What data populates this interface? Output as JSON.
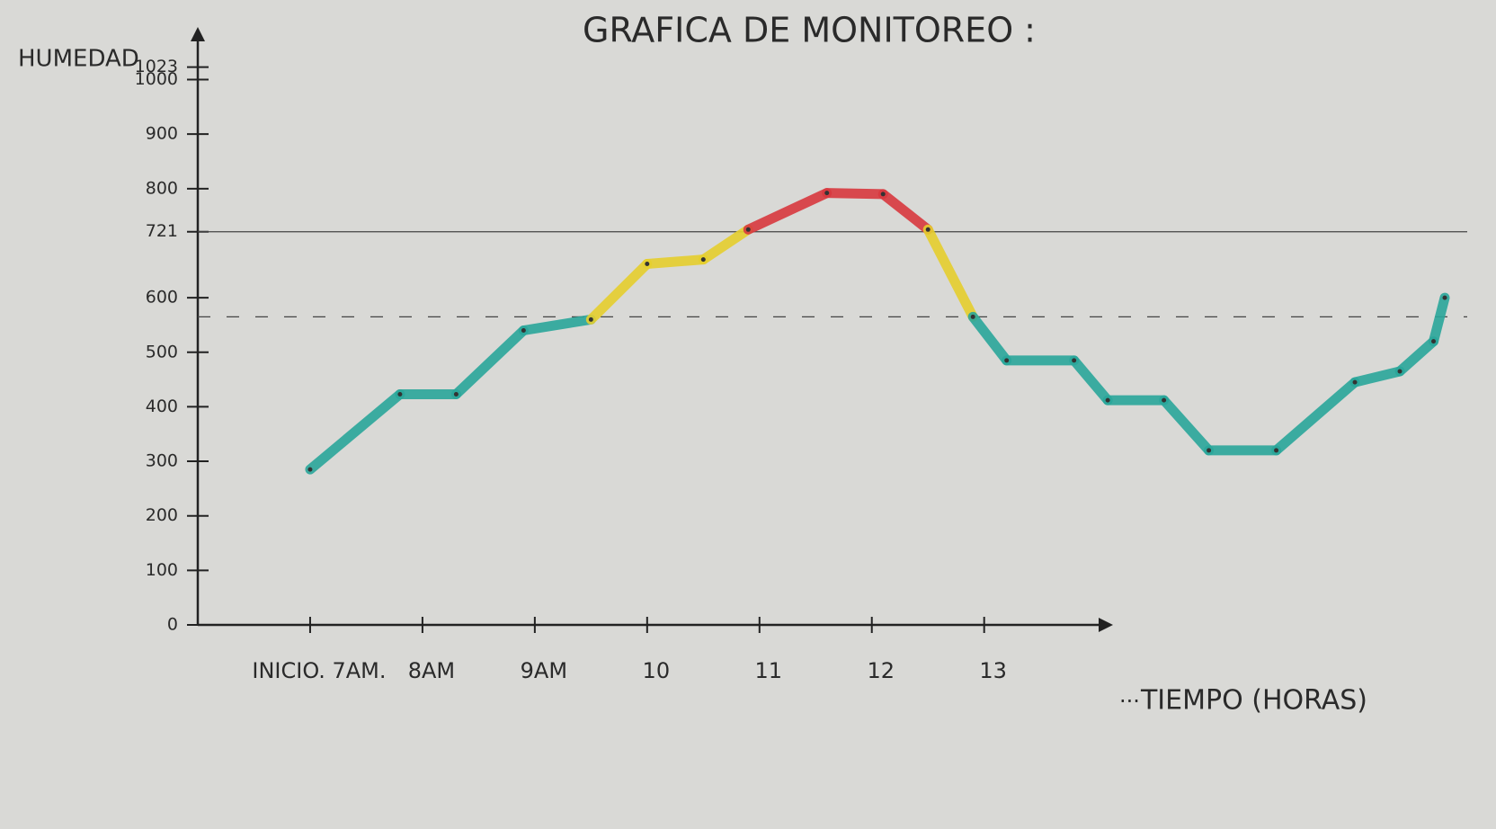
{
  "chart_data": {
    "type": "line",
    "title": "GRAFICA DE MONITOREO :",
    "ylabel": "HUMEDAD",
    "xlabel": "TIEMPO (HORAS)",
    "annotations": [
      "..."
    ],
    "xlim": [
      6,
      17.3
    ],
    "xticks": [
      {
        "value": 7,
        "label": "INICIO. 7AM."
      },
      {
        "value": 8,
        "label": "8AM"
      },
      {
        "value": 9,
        "label": "9AM"
      },
      10,
      11,
      12,
      13
    ],
    "ylim": [
      0,
      1080
    ],
    "yticks": [
      0,
      100,
      200,
      300,
      400,
      500,
      600,
      721,
      800,
      900,
      1000,
      1023
    ],
    "reference_lines": [
      {
        "value": 721,
        "style": "solid"
      },
      {
        "value": 565,
        "style": "dashed"
      }
    ],
    "thresholds": [
      565,
      721
    ],
    "colors": [
      "#2aa79b",
      "#e6cf2e",
      "#d8393f"
    ],
    "series": [
      {
        "name": "HUMEDAD",
        "x": [
          7.0,
          7.8,
          8.3,
          8.9,
          9.5,
          10.0,
          10.5,
          10.9,
          11.6,
          12.1,
          12.5,
          12.9,
          13.2,
          13.8,
          14.1,
          14.6,
          15.0,
          15.6,
          16.3,
          16.7,
          17.0,
          17.1
        ],
        "values": [
          285,
          423,
          423,
          540,
          560,
          662,
          670,
          725,
          792,
          790,
          725,
          565,
          485,
          485,
          412,
          412,
          320,
          320,
          445,
          465,
          520,
          600
        ]
      }
    ]
  }
}
